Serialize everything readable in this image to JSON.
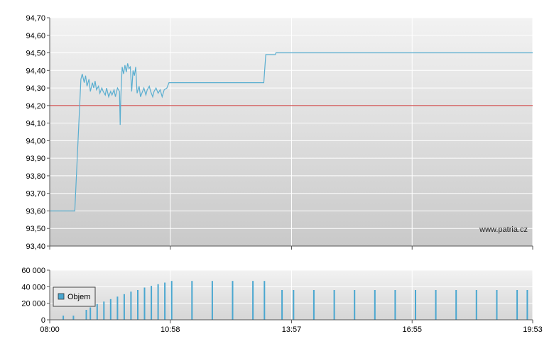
{
  "chart_data": [
    {
      "type": "line",
      "title": "",
      "xlabel": "",
      "ylabel": "",
      "ylim": [
        93.4,
        94.7
      ],
      "yticks": [
        "94,70",
        "94,60",
        "94,50",
        "94,40",
        "94,30",
        "94,20",
        "94,10",
        "94,00",
        "93,90",
        "93,80",
        "93,70",
        "93,60",
        "93,50",
        "93,40"
      ],
      "ytick_values": [
        94.7,
        94.6,
        94.5,
        94.4,
        94.3,
        94.2,
        94.1,
        94.0,
        93.9,
        93.8,
        93.7,
        93.6,
        93.5,
        93.4
      ],
      "xticks": [
        "08:00",
        "10:58",
        "13:57",
        "16:55",
        "19:53"
      ],
      "grid": true,
      "reference_line": {
        "value": 94.2,
        "color": "#cc3333"
      },
      "series": [
        {
          "color": "#5aaed0",
          "points": [
            [
              "08:00",
              93.6
            ],
            [
              "08:37",
              93.6
            ],
            [
              "08:46",
              94.35
            ],
            [
              "08:48",
              94.38
            ],
            [
              "08:51",
              94.33
            ],
            [
              "08:53",
              94.37
            ],
            [
              "08:55",
              94.31
            ],
            [
              "08:58",
              94.35
            ],
            [
              "09:00",
              94.28
            ],
            [
              "09:03",
              94.33
            ],
            [
              "09:05",
              94.3
            ],
            [
              "09:07",
              94.34
            ],
            [
              "09:09",
              94.29
            ],
            [
              "09:12",
              94.31
            ],
            [
              "09:14",
              94.27
            ],
            [
              "09:17",
              94.3
            ],
            [
              "09:19",
              94.28
            ],
            [
              "09:22",
              94.26
            ],
            [
              "09:24",
              94.3
            ],
            [
              "09:27",
              94.25
            ],
            [
              "09:30",
              94.28
            ],
            [
              "09:32",
              94.26
            ],
            [
              "09:35",
              94.29
            ],
            [
              "09:37",
              94.25
            ],
            [
              "09:40",
              94.3
            ],
            [
              "09:43",
              94.28
            ],
            [
              "09:44",
              94.09
            ],
            [
              "09:45",
              94.25
            ],
            [
              "09:47",
              94.42
            ],
            [
              "09:49",
              94.38
            ],
            [
              "09:51",
              94.43
            ],
            [
              "09:53",
              94.39
            ],
            [
              "09:55",
              94.44
            ],
            [
              "09:57",
              94.41
            ],
            [
              "09:59",
              94.42
            ],
            [
              "10:01",
              94.28
            ],
            [
              "10:03",
              94.4
            ],
            [
              "10:05",
              94.37
            ],
            [
              "10:07",
              94.42
            ],
            [
              "10:09",
              94.27
            ],
            [
              "10:12",
              94.31
            ],
            [
              "10:14",
              94.25
            ],
            [
              "10:17",
              94.28
            ],
            [
              "10:19",
              94.3
            ],
            [
              "10:22",
              94.26
            ],
            [
              "10:24",
              94.29
            ],
            [
              "10:27",
              94.31
            ],
            [
              "10:29",
              94.28
            ],
            [
              "10:32",
              94.25
            ],
            [
              "10:34",
              94.28
            ],
            [
              "10:37",
              94.3
            ],
            [
              "10:40",
              94.27
            ],
            [
              "10:43",
              94.29
            ],
            [
              "10:46",
              94.25
            ],
            [
              "10:49",
              94.29
            ],
            [
              "10:53",
              94.3
            ],
            [
              "10:56",
              94.33
            ],
            [
              "13:16",
              94.33
            ],
            [
              "13:19",
              94.49
            ],
            [
              "13:33",
              94.49
            ],
            [
              "13:34",
              94.5
            ],
            [
              "19:53",
              94.5
            ]
          ]
        }
      ],
      "watermark": "www.patria.cz"
    },
    {
      "type": "bar",
      "title": "",
      "xlabel": "",
      "ylabel": "",
      "ylim": [
        0,
        60000
      ],
      "yticks": [
        "60 000",
        "40 000",
        "20 000",
        "0"
      ],
      "ytick_values": [
        60000,
        40000,
        20000,
        0
      ],
      "xticks": [
        "08:00",
        "10:58",
        "13:57",
        "16:55",
        "19:53"
      ],
      "grid": true,
      "legend": {
        "placement": "left",
        "entries": [
          {
            "label": "Objem",
            "color": "#4aa7d0"
          }
        ]
      },
      "series": [
        {
          "name": "Objem",
          "color": "#4aa7d0",
          "bars": [
            [
              "08:20",
              5000
            ],
            [
              "08:35",
              5000
            ],
            [
              "08:54",
              12000
            ],
            [
              "09:00",
              15000
            ],
            [
              "09:10",
              19000
            ],
            [
              "09:20",
              22000
            ],
            [
              "09:30",
              25000
            ],
            [
              "09:40",
              28000
            ],
            [
              "09:50",
              31000
            ],
            [
              "10:00",
              34000
            ],
            [
              "10:10",
              36000
            ],
            [
              "10:20",
              39000
            ],
            [
              "10:30",
              41000
            ],
            [
              "10:40",
              43000
            ],
            [
              "10:50",
              45000
            ],
            [
              "11:00",
              47000
            ],
            [
              "11:30",
              47000
            ],
            [
              "12:00",
              47000
            ],
            [
              "12:30",
              47000
            ],
            [
              "13:00",
              47000
            ],
            [
              "13:17",
              47000
            ],
            [
              "13:43",
              36000
            ],
            [
              "14:00",
              36000
            ],
            [
              "14:30",
              36000
            ],
            [
              "15:00",
              36000
            ],
            [
              "15:30",
              36000
            ],
            [
              "16:00",
              36000
            ],
            [
              "16:30",
              36000
            ],
            [
              "17:00",
              36000
            ],
            [
              "17:30",
              36000
            ],
            [
              "18:00",
              36000
            ],
            [
              "18:30",
              36000
            ],
            [
              "19:00",
              36000
            ],
            [
              "19:30",
              36000
            ],
            [
              "19:45",
              36000
            ]
          ]
        }
      ]
    }
  ]
}
